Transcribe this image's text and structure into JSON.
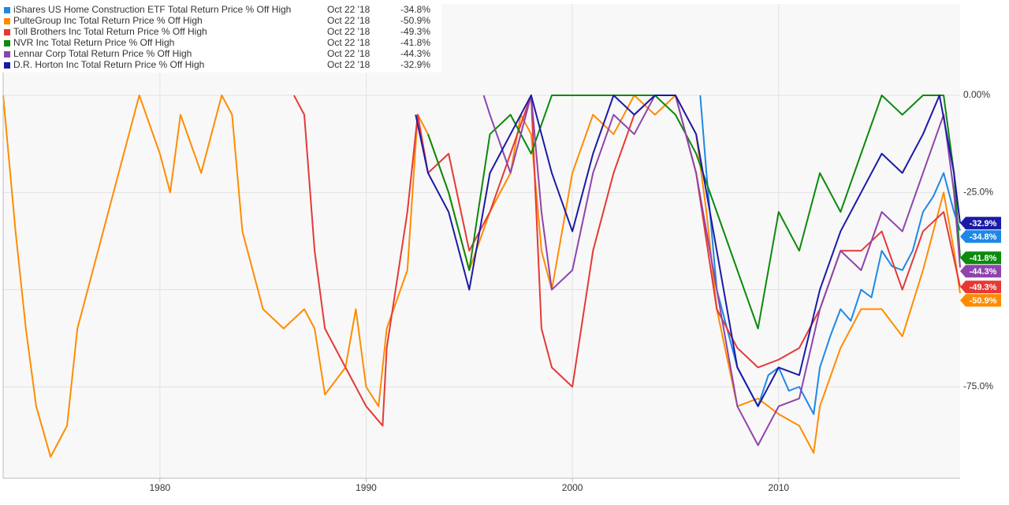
{
  "chart_data": {
    "type": "line",
    "legend_date": "Oct 22 '18",
    "xlim": [
      1972.4,
      2018.8
    ],
    "xticks": [
      1980,
      1990,
      2000,
      2010
    ],
    "ylim": [
      -98.5,
      23.5
    ],
    "yticks": [
      {
        "value": 0,
        "label": "0.00%"
      },
      {
        "value": -25,
        "label": "-25.0%"
      },
      {
        "value": -75,
        "label": "-75.0%"
      }
    ],
    "grid_lines": [
      0,
      -25,
      -50,
      -75
    ],
    "grid": true,
    "series": [
      {
        "name": "iShares US Home Construction ETF Total Return Price % Off High",
        "color": "#1e88e5",
        "latest": -34.8,
        "latest_label": "-34.8%",
        "x": [
          2006.2,
          2006.5,
          2007,
          2007.5,
          2008,
          2008.5,
          2009,
          2009.5,
          2010,
          2010.5,
          2011,
          2011.7,
          2012,
          2012.5,
          2013,
          2013.5,
          2014,
          2014.5,
          2015,
          2015.5,
          2016,
          2016.5,
          2017,
          2017.5,
          2018,
          2018.5,
          2018.8
        ],
        "values": [
          0,
          -20,
          -50,
          -60,
          -70,
          -75,
          -80,
          -72,
          -70,
          -76,
          -75,
          -82,
          -70,
          -62,
          -55,
          -58,
          -50,
          -52,
          -40,
          -44,
          -45,
          -40,
          -30,
          -26,
          -20,
          -30,
          -34.8
        ]
      },
      {
        "name": "PulteGroup Inc Total Return Price % Off High",
        "color": "#ff8c00",
        "latest": -50.9,
        "latest_label": "-50.9%",
        "x": [
          1972.4,
          1973,
          1973.5,
          1974,
          1974.7,
          1975.5,
          1976,
          1977,
          1978,
          1979,
          1980,
          1980.5,
          1981,
          1982,
          1983,
          1983.5,
          1984,
          1985,
          1986,
          1987,
          1987.5,
          1988,
          1989,
          1989.5,
          1990,
          1990.6,
          1991,
          1992,
          1992.5,
          1993,
          1994,
          1995,
          1996,
          1997,
          1997.5,
          1998,
          1998.5,
          1999,
          2000,
          2001,
          2002,
          2003,
          2004,
          2005,
          2006,
          2006.5,
          2007,
          2008,
          2009,
          2010,
          2011,
          2011.7,
          2012,
          2013,
          2014,
          2015,
          2016,
          2017,
          2018,
          2018.5,
          2018.8
        ],
        "values": [
          0,
          -35,
          -60,
          -80,
          -93,
          -85,
          -60,
          -40,
          -20,
          0,
          -15,
          -25,
          -5,
          -20,
          0,
          -5,
          -35,
          -55,
          -60,
          -55,
          -60,
          -77,
          -70,
          -55,
          -75,
          -80,
          -60,
          -45,
          -5,
          -10,
          -25,
          -45,
          -30,
          -20,
          -5,
          -10,
          -40,
          -50,
          -20,
          -5,
          -10,
          0,
          -5,
          0,
          -10,
          -30,
          -55,
          -80,
          -78,
          -82,
          -85,
          -92,
          -80,
          -65,
          -55,
          -55,
          -62,
          -45,
          -25,
          -40,
          -50.9
        ]
      },
      {
        "name": "Toll Brothers Inc Total Return Price % Off High",
        "color": "#e53935",
        "latest": -49.3,
        "latest_label": "-49.3%",
        "x": [
          1986.5,
          1987,
          1987.5,
          1988,
          1989,
          1990,
          1990.8,
          1991,
          1992,
          1992.5,
          1993,
          1994,
          1995,
          1996,
          1997,
          1998,
          1998.5,
          1999,
          2000,
          2001,
          2002,
          2003,
          2004,
          2005,
          2006,
          2007,
          2008,
          2009,
          2010,
          2011,
          2012,
          2013,
          2014,
          2015,
          2016,
          2017,
          2018,
          2018.8
        ],
        "values": [
          0,
          -5,
          -40,
          -60,
          -70,
          -80,
          -85,
          -65,
          -30,
          -5,
          -20,
          -15,
          -40,
          -30,
          -15,
          0,
          -60,
          -70,
          -75,
          -40,
          -20,
          -5,
          0,
          0,
          -20,
          -55,
          -65,
          -70,
          -68,
          -65,
          -55,
          -40,
          -40,
          -35,
          -50,
          -35,
          -30,
          -49.3
        ]
      },
      {
        "name": "NVR Inc Total Return Price % Off High",
        "color": "#0b8a0b",
        "latest": -41.8,
        "latest_label": "-41.8%",
        "x": [
          1993,
          1994,
          1995,
          1996,
          1997,
          1998,
          1999,
          2000,
          2001,
          2002,
          2003,
          2004,
          2005,
          2006,
          2007,
          2008,
          2009,
          2010,
          2011,
          2012,
          2013,
          2014,
          2015,
          2016,
          2017,
          2018,
          2018.5,
          2018.8
        ],
        "values": [
          -10,
          -25,
          -45,
          -10,
          -5,
          -15,
          0,
          0,
          0,
          0,
          0,
          0,
          -5,
          -15,
          -30,
          -45,
          -60,
          -30,
          -40,
          -20,
          -30,
          -15,
          0,
          -5,
          0,
          0,
          -20,
          -41.8
        ]
      },
      {
        "name": "Lennar Corp Total Return Price % Off High",
        "color": "#8e44ad",
        "latest": -44.3,
        "latest_label": "-44.3%",
        "x": [
          1995.7,
          1996,
          1997,
          1998,
          1998.5,
          1999,
          2000,
          2001,
          2002,
          2003,
          2004,
          2005,
          2006,
          2007,
          2008,
          2009,
          2010,
          2011,
          2012,
          2013,
          2014,
          2015,
          2016,
          2017,
          2018,
          2018.5,
          2018.8
        ],
        "values": [
          0,
          -5,
          -20,
          0,
          -30,
          -50,
          -45,
          -20,
          -5,
          -10,
          0,
          0,
          -20,
          -50,
          -80,
          -90,
          -80,
          -78,
          -55,
          -40,
          -45,
          -30,
          -35,
          -20,
          -5,
          -25,
          -44.3
        ]
      },
      {
        "name": "D.R. Horton Inc Total Return Price % Off High",
        "color": "#1a1aa6",
        "latest": -32.9,
        "latest_label": "-32.9%",
        "x": [
          1992.4,
          1993,
          1994,
          1995,
          1996,
          1997,
          1998,
          1999,
          2000,
          2001,
          2002,
          2003,
          2004,
          2005,
          2006,
          2007,
          2008,
          2009,
          2010,
          2011,
          2012,
          2013,
          2014,
          2015,
          2016,
          2017,
          2017.8,
          2018.5,
          2018.8
        ],
        "values": [
          -5,
          -20,
          -30,
          -50,
          -20,
          -10,
          0,
          -20,
          -35,
          -15,
          0,
          -5,
          0,
          0,
          -10,
          -40,
          -70,
          -80,
          -70,
          -72,
          -50,
          -35,
          -25,
          -15,
          -20,
          -10,
          0,
          -20,
          -32.9
        ]
      }
    ]
  }
}
